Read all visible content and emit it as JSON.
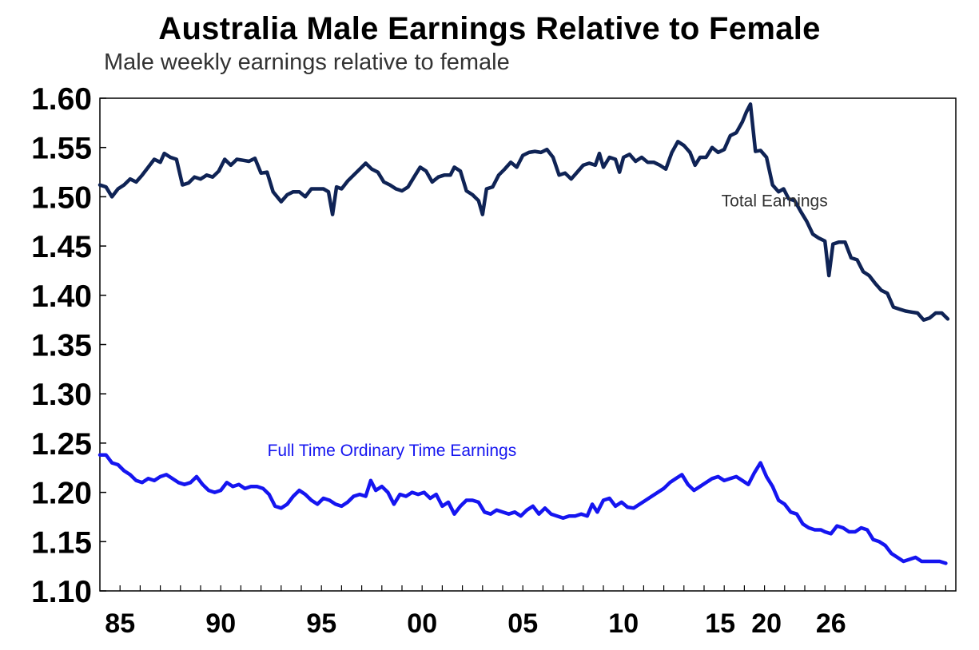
{
  "chart_data": {
    "type": "line",
    "title": "Australia Male Earnings Relative to Female",
    "subtitle": "Male weekly earnings relative to female",
    "xlabel": "",
    "ylabel": "",
    "ylim": [
      1.1,
      1.6
    ],
    "y_ticks": [
      "1.10",
      "1.15",
      "1.20",
      "1.25",
      "1.30",
      "1.35",
      "1.40",
      "1.45",
      "1.50",
      "1.55",
      "1.60"
    ],
    "x_ticks": [
      {
        "label": "85",
        "x": 1985
      },
      {
        "label": "90",
        "x": 1990
      },
      {
        "label": "95",
        "x": 1995
      },
      {
        "label": "00",
        "x": 2000
      },
      {
        "label": "05",
        "x": 2005
      },
      {
        "label": "10",
        "x": 2010
      },
      {
        "label": "15",
        "x": 2014.8
      },
      {
        "label": "20",
        "x": 2017.1
      },
      {
        "label": "26",
        "x": 2020.3
      }
    ],
    "grid": false,
    "legend": "inline labels",
    "series": [
      {
        "name": "Total Earnings",
        "color": "#0f2355",
        "label_anchor": [
          2017.5,
          1.49
        ],
        "points": [
          [
            1984.0,
            1.512
          ],
          [
            1984.3,
            1.51
          ],
          [
            1984.6,
            1.5
          ],
          [
            1984.9,
            1.508
          ],
          [
            1985.2,
            1.512
          ],
          [
            1985.5,
            1.518
          ],
          [
            1985.8,
            1.515
          ],
          [
            1986.1,
            1.522
          ],
          [
            1986.4,
            1.53
          ],
          [
            1986.7,
            1.538
          ],
          [
            1987.0,
            1.535
          ],
          [
            1987.2,
            1.544
          ],
          [
            1987.5,
            1.54
          ],
          [
            1987.8,
            1.538
          ],
          [
            1988.1,
            1.512
          ],
          [
            1988.4,
            1.514
          ],
          [
            1988.7,
            1.52
          ],
          [
            1989.0,
            1.518
          ],
          [
            1989.3,
            1.522
          ],
          [
            1989.6,
            1.52
          ],
          [
            1989.9,
            1.526
          ],
          [
            1990.2,
            1.538
          ],
          [
            1990.5,
            1.532
          ],
          [
            1990.8,
            1.538
          ],
          [
            1991.1,
            1.537
          ],
          [
            1991.4,
            1.536
          ],
          [
            1991.7,
            1.539
          ],
          [
            1992.0,
            1.524
          ],
          [
            1992.3,
            1.525
          ],
          [
            1992.6,
            1.505
          ],
          [
            1993.0,
            1.495
          ],
          [
            1993.3,
            1.502
          ],
          [
            1993.6,
            1.505
          ],
          [
            1993.9,
            1.505
          ],
          [
            1994.2,
            1.5
          ],
          [
            1994.5,
            1.508
          ],
          [
            1994.8,
            1.508
          ],
          [
            1995.1,
            1.508
          ],
          [
            1995.35,
            1.505
          ],
          [
            1995.55,
            1.482
          ],
          [
            1995.75,
            1.51
          ],
          [
            1996.0,
            1.508
          ],
          [
            1996.3,
            1.516
          ],
          [
            1996.6,
            1.522
          ],
          [
            1996.9,
            1.528
          ],
          [
            1997.2,
            1.534
          ],
          [
            1997.5,
            1.528
          ],
          [
            1997.8,
            1.525
          ],
          [
            1998.1,
            1.515
          ],
          [
            1998.4,
            1.512
          ],
          [
            1998.7,
            1.508
          ],
          [
            1999.0,
            1.506
          ],
          [
            1999.3,
            1.51
          ],
          [
            1999.6,
            1.52
          ],
          [
            1999.9,
            1.53
          ],
          [
            2000.2,
            1.526
          ],
          [
            2000.5,
            1.515
          ],
          [
            2000.8,
            1.52
          ],
          [
            2001.1,
            1.522
          ],
          [
            2001.4,
            1.522
          ],
          [
            2001.6,
            1.53
          ],
          [
            2001.9,
            1.526
          ],
          [
            2002.2,
            1.506
          ],
          [
            2002.5,
            1.502
          ],
          [
            2002.8,
            1.496
          ],
          [
            2003.0,
            1.482
          ],
          [
            2003.2,
            1.508
          ],
          [
            2003.5,
            1.51
          ],
          [
            2003.8,
            1.522
          ],
          [
            2004.1,
            1.528
          ],
          [
            2004.4,
            1.535
          ],
          [
            2004.7,
            1.53
          ],
          [
            2005.0,
            1.542
          ],
          [
            2005.3,
            1.545
          ],
          [
            2005.6,
            1.546
          ],
          [
            2005.9,
            1.545
          ],
          [
            2006.2,
            1.548
          ],
          [
            2006.5,
            1.54
          ],
          [
            2006.8,
            1.522
          ],
          [
            2007.1,
            1.524
          ],
          [
            2007.4,
            1.518
          ],
          [
            2007.7,
            1.525
          ],
          [
            2008.0,
            1.532
          ],
          [
            2008.3,
            1.534
          ],
          [
            2008.6,
            1.532
          ],
          [
            2008.8,
            1.544
          ],
          [
            2009.0,
            1.53
          ],
          [
            2009.3,
            1.54
          ],
          [
            2009.6,
            1.538
          ],
          [
            2009.8,
            1.525
          ],
          [
            2010.0,
            1.54
          ],
          [
            2010.3,
            1.543
          ],
          [
            2010.6,
            1.536
          ],
          [
            2010.9,
            1.54
          ],
          [
            2011.2,
            1.535
          ],
          [
            2011.5,
            1.535
          ],
          [
            2011.8,
            1.532
          ],
          [
            2012.1,
            1.528
          ],
          [
            2012.4,
            1.545
          ],
          [
            2012.7,
            1.556
          ],
          [
            2013.0,
            1.552
          ],
          [
            2013.3,
            1.545
          ],
          [
            2013.55,
            1.532
          ],
          [
            2013.8,
            1.54
          ],
          [
            2014.1,
            1.54
          ],
          [
            2014.4,
            1.55
          ],
          [
            2014.7,
            1.545
          ],
          [
            2015.0,
            1.548
          ],
          [
            2015.3,
            1.562
          ],
          [
            2015.6,
            1.565
          ],
          [
            2015.9,
            1.576
          ],
          [
            2016.1,
            1.586
          ],
          [
            2016.3,
            1.594
          ],
          [
            2016.55,
            1.546
          ],
          [
            2016.8,
            1.547
          ],
          [
            2017.1,
            1.54
          ],
          [
            2017.4,
            1.512
          ],
          [
            2017.7,
            1.505
          ],
          [
            2017.95,
            1.508
          ],
          [
            2018.2,
            1.498
          ],
          [
            2018.5,
            1.496
          ],
          [
            2018.8,
            1.485
          ],
          [
            2019.1,
            1.475
          ],
          [
            2019.4,
            1.462
          ],
          [
            2019.7,
            1.458
          ],
          [
            2020.0,
            1.455
          ],
          [
            2020.2,
            1.42
          ],
          [
            2020.4,
            1.452
          ],
          [
            2020.7,
            1.454
          ],
          [
            2021.0,
            1.454
          ],
          [
            2021.3,
            1.438
          ],
          [
            2021.6,
            1.436
          ],
          [
            2021.9,
            1.424
          ],
          [
            2022.2,
            1.42
          ],
          [
            2022.5,
            1.412
          ],
          [
            2022.8,
            1.405
          ],
          [
            2023.1,
            1.402
          ],
          [
            2023.4,
            1.388
          ],
          [
            2023.7,
            1.386
          ],
          [
            2024.0,
            1.384
          ],
          [
            2024.3,
            1.383
          ],
          [
            2024.6,
            1.382
          ],
          [
            2024.9,
            1.375
          ],
          [
            2025.2,
            1.377
          ],
          [
            2025.5,
            1.382
          ],
          [
            2025.8,
            1.382
          ],
          [
            2026.1,
            1.376
          ]
        ]
      },
      {
        "name": "Full Time Ordinary Time Earnings",
        "color": "#1515f0",
        "label_anchor": [
          1998.5,
          1.237
        ],
        "points": [
          [
            1984.0,
            1.238
          ],
          [
            1984.3,
            1.238
          ],
          [
            1984.6,
            1.23
          ],
          [
            1984.9,
            1.228
          ],
          [
            1985.2,
            1.222
          ],
          [
            1985.5,
            1.218
          ],
          [
            1985.8,
            1.212
          ],
          [
            1986.1,
            1.21
          ],
          [
            1986.4,
            1.214
          ],
          [
            1986.7,
            1.212
          ],
          [
            1987.0,
            1.216
          ],
          [
            1987.3,
            1.218
          ],
          [
            1987.6,
            1.214
          ],
          [
            1987.9,
            1.21
          ],
          [
            1988.2,
            1.208
          ],
          [
            1988.5,
            1.21
          ],
          [
            1988.8,
            1.216
          ],
          [
            1989.1,
            1.208
          ],
          [
            1989.4,
            1.202
          ],
          [
            1989.7,
            1.2
          ],
          [
            1990.0,
            1.202
          ],
          [
            1990.3,
            1.21
          ],
          [
            1990.6,
            1.206
          ],
          [
            1990.9,
            1.208
          ],
          [
            1991.2,
            1.204
          ],
          [
            1991.5,
            1.206
          ],
          [
            1991.8,
            1.206
          ],
          [
            1992.1,
            1.204
          ],
          [
            1992.4,
            1.198
          ],
          [
            1992.7,
            1.186
          ],
          [
            1993.0,
            1.184
          ],
          [
            1993.3,
            1.188
          ],
          [
            1993.6,
            1.196
          ],
          [
            1993.9,
            1.202
          ],
          [
            1994.2,
            1.198
          ],
          [
            1994.5,
            1.192
          ],
          [
            1994.8,
            1.188
          ],
          [
            1995.1,
            1.194
          ],
          [
            1995.4,
            1.192
          ],
          [
            1995.7,
            1.188
          ],
          [
            1996.0,
            1.186
          ],
          [
            1996.3,
            1.19
          ],
          [
            1996.6,
            1.196
          ],
          [
            1996.9,
            1.198
          ],
          [
            1997.2,
            1.196
          ],
          [
            1997.45,
            1.212
          ],
          [
            1997.7,
            1.202
          ],
          [
            1998.0,
            1.206
          ],
          [
            1998.3,
            1.2
          ],
          [
            1998.6,
            1.188
          ],
          [
            1998.9,
            1.198
          ],
          [
            1999.2,
            1.196
          ],
          [
            1999.5,
            1.2
          ],
          [
            1999.8,
            1.198
          ],
          [
            2000.1,
            1.2
          ],
          [
            2000.4,
            1.194
          ],
          [
            2000.7,
            1.198
          ],
          [
            2001.0,
            1.186
          ],
          [
            2001.3,
            1.19
          ],
          [
            2001.6,
            1.178
          ],
          [
            2001.9,
            1.186
          ],
          [
            2002.2,
            1.192
          ],
          [
            2002.5,
            1.192
          ],
          [
            2002.8,
            1.19
          ],
          [
            2003.1,
            1.18
          ],
          [
            2003.4,
            1.178
          ],
          [
            2003.7,
            1.182
          ],
          [
            2004.0,
            1.18
          ],
          [
            2004.3,
            1.178
          ],
          [
            2004.6,
            1.18
          ],
          [
            2004.9,
            1.176
          ],
          [
            2005.2,
            1.182
          ],
          [
            2005.5,
            1.186
          ],
          [
            2005.8,
            1.178
          ],
          [
            2006.1,
            1.184
          ],
          [
            2006.4,
            1.178
          ],
          [
            2006.7,
            1.176
          ],
          [
            2007.0,
            1.174
          ],
          [
            2007.3,
            1.176
          ],
          [
            2007.6,
            1.176
          ],
          [
            2007.9,
            1.178
          ],
          [
            2008.2,
            1.176
          ],
          [
            2008.45,
            1.188
          ],
          [
            2008.7,
            1.18
          ],
          [
            2009.0,
            1.192
          ],
          [
            2009.3,
            1.194
          ],
          [
            2009.6,
            1.186
          ],
          [
            2009.9,
            1.19
          ],
          [
            2010.2,
            1.185
          ],
          [
            2010.5,
            1.184
          ],
          [
            2010.8,
            1.188
          ],
          [
            2011.1,
            1.192
          ],
          [
            2011.4,
            1.196
          ],
          [
            2011.7,
            1.2
          ],
          [
            2012.0,
            1.204
          ],
          [
            2012.3,
            1.21
          ],
          [
            2012.6,
            1.214
          ],
          [
            2012.9,
            1.218
          ],
          [
            2013.2,
            1.208
          ],
          [
            2013.5,
            1.202
          ],
          [
            2013.8,
            1.206
          ],
          [
            2014.1,
            1.21
          ],
          [
            2014.4,
            1.214
          ],
          [
            2014.7,
            1.216
          ],
          [
            2015.0,
            1.212
          ],
          [
            2015.3,
            1.214
          ],
          [
            2015.6,
            1.216
          ],
          [
            2015.9,
            1.212
          ],
          [
            2016.2,
            1.208
          ],
          [
            2016.5,
            1.22
          ],
          [
            2016.8,
            1.23
          ],
          [
            2017.1,
            1.216
          ],
          [
            2017.4,
            1.206
          ],
          [
            2017.7,
            1.192
          ],
          [
            2018.0,
            1.188
          ],
          [
            2018.3,
            1.18
          ],
          [
            2018.6,
            1.178
          ],
          [
            2018.9,
            1.168
          ],
          [
            2019.2,
            1.164
          ],
          [
            2019.5,
            1.162
          ],
          [
            2019.8,
            1.162
          ],
          [
            2020.0,
            1.16
          ],
          [
            2020.3,
            1.158
          ],
          [
            2020.6,
            1.166
          ],
          [
            2020.9,
            1.164
          ],
          [
            2021.2,
            1.16
          ],
          [
            2021.5,
            1.16
          ],
          [
            2021.8,
            1.164
          ],
          [
            2022.1,
            1.162
          ],
          [
            2022.4,
            1.152
          ],
          [
            2022.7,
            1.15
          ],
          [
            2023.0,
            1.146
          ],
          [
            2023.3,
            1.138
          ],
          [
            2023.6,
            1.134
          ],
          [
            2023.9,
            1.13
          ],
          [
            2024.2,
            1.132
          ],
          [
            2024.5,
            1.134
          ],
          [
            2024.8,
            1.13
          ],
          [
            2025.1,
            1.13
          ],
          [
            2025.4,
            1.13
          ],
          [
            2025.7,
            1.13
          ],
          [
            2026.0,
            1.128
          ]
        ]
      }
    ]
  }
}
